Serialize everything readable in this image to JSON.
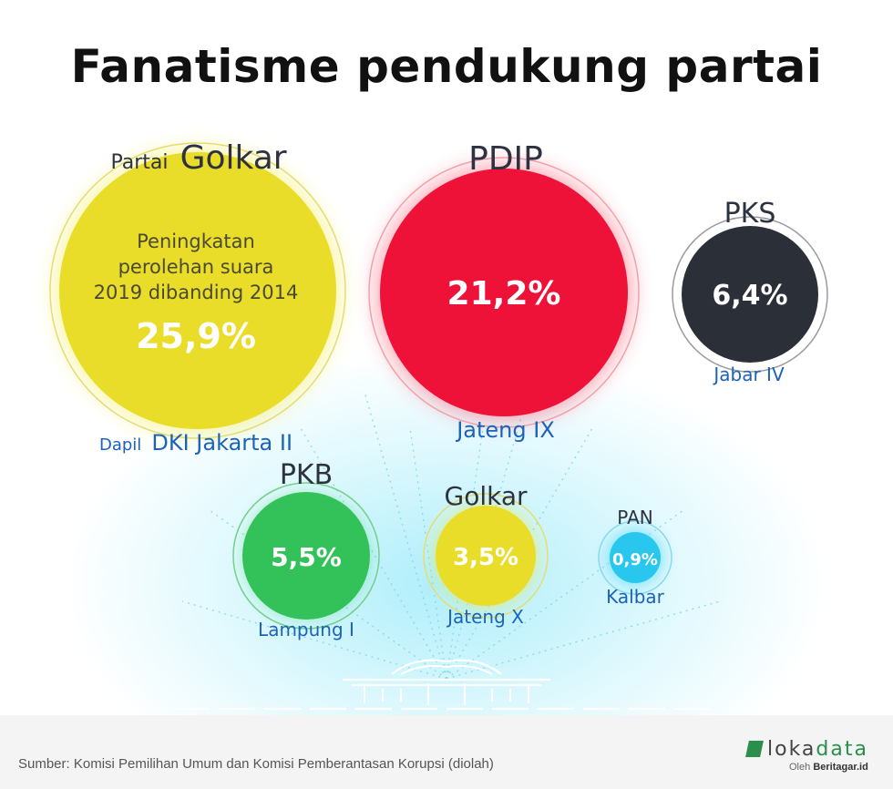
{
  "title": "Fanatisme pendukung partai",
  "bubbles": [
    {
      "party_prefix": "Partai",
      "party": "Golkar",
      "caption": [
        "Peningkatan",
        "perolehan suara",
        "2019 dibanding 2014"
      ],
      "value": "25,9%",
      "dapil_prefix": "Dapil",
      "dapil": "DKI Jakarta II",
      "color": "#e9dd2a"
    },
    {
      "party": "PDIP",
      "value": "21,2%",
      "dapil": "Jateng IX",
      "color": "#ee1239"
    },
    {
      "party": "PKS",
      "value": "6,4%",
      "dapil": "Jabar IV",
      "color": "#2b2f38"
    },
    {
      "party": "PKB",
      "value": "5,5%",
      "dapil": "Lampung I",
      "color": "#33c15a"
    },
    {
      "party": "Golkar",
      "value": "3,5%",
      "dapil": "Jateng X",
      "color": "#e9dd2a"
    },
    {
      "party": "PAN",
      "value": "0,9%",
      "dapil": "Kalbar",
      "color": "#29c7ee"
    }
  ],
  "footer": {
    "source": "Sumber: Komisi Pemilihan Umum dan Komisi Pemberantasan Korupsi (diolah)",
    "brand_first": "loka",
    "brand_second": "data",
    "byline_prefix": "Oleh",
    "byline_name": "Beritagar.id"
  }
}
